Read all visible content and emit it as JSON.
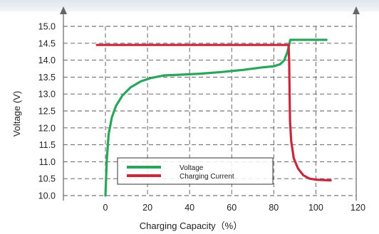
{
  "chart_data": {
    "type": "line",
    "title": "",
    "xlabel": "Charging Capacity（%）",
    "ylabel": "Voltage (V)",
    "xlim": [
      -10,
      120
    ],
    "ylim": [
      10.0,
      15.0
    ],
    "grid": true,
    "grid_style": "dashed",
    "x_ticks": [
      0,
      20,
      40,
      60,
      80,
      100,
      120
    ],
    "x_tick_labels": [
      "0",
      "20",
      "40",
      "60",
      "80",
      "100",
      "120"
    ],
    "y_ticks": [
      10.0,
      10.5,
      11.0,
      11.5,
      12.0,
      12.5,
      13.0,
      13.5,
      14.0,
      14.5,
      15.0
    ],
    "y_tick_labels": [
      "10.0",
      "10.5",
      "11.0",
      "11.5",
      "12.0",
      "12.5",
      "13.0",
      "13.5",
      "14.0",
      "14.5",
      "15.0"
    ],
    "legend_position": "bottom-left",
    "series": [
      {
        "name": "Voltage",
        "color": "#2aa55a",
        "points": [
          [
            0,
            10.0
          ],
          [
            0.6,
            11.0
          ],
          [
            1.5,
            11.8
          ],
          [
            3,
            12.3
          ],
          [
            5,
            12.65
          ],
          [
            8,
            12.95
          ],
          [
            12,
            13.2
          ],
          [
            17,
            13.38
          ],
          [
            22,
            13.48
          ],
          [
            28,
            13.55
          ],
          [
            35,
            13.57
          ],
          [
            45,
            13.6
          ],
          [
            55,
            13.65
          ],
          [
            65,
            13.71
          ],
          [
            75,
            13.79
          ],
          [
            80,
            13.82
          ],
          [
            83,
            13.88
          ],
          [
            85,
            14.0
          ],
          [
            86.5,
            14.25
          ],
          [
            87.5,
            14.5
          ],
          [
            87.8,
            14.6
          ],
          [
            105,
            14.6
          ]
        ]
      },
      {
        "name": "Charging Current",
        "color": "#c8283c",
        "points": [
          [
            -4,
            14.45
          ],
          [
            20,
            14.45
          ],
          [
            40,
            14.45
          ],
          [
            60,
            14.45
          ],
          [
            80,
            14.45
          ],
          [
            87,
            14.45
          ],
          [
            87.3,
            14.0
          ],
          [
            87.5,
            13.0
          ],
          [
            87.7,
            12.2
          ],
          [
            88.3,
            11.6
          ],
          [
            89.5,
            11.1
          ],
          [
            91.5,
            10.8
          ],
          [
            94,
            10.6
          ],
          [
            97,
            10.5
          ],
          [
            100,
            10.47
          ],
          [
            107,
            10.45
          ]
        ]
      }
    ]
  }
}
